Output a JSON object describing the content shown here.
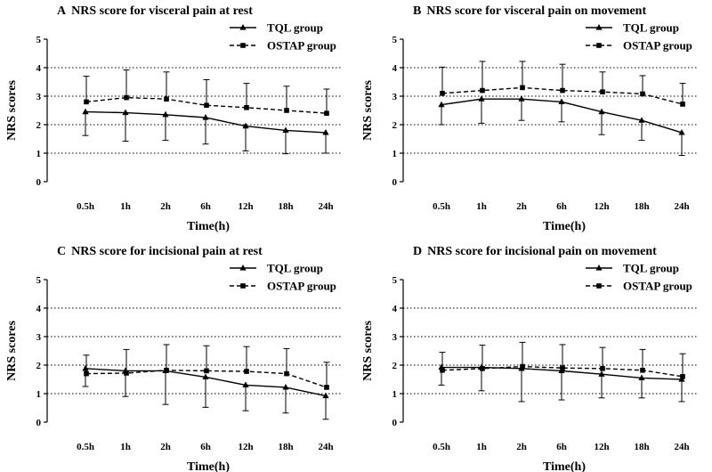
{
  "chart_data": [
    {
      "type": "line",
      "panel": "A",
      "title": "NRS score for visceral pain at rest",
      "xlabel": "Time(h)",
      "ylabel": "NRS scores",
      "categories": [
        "0.5h",
        "1h",
        "2h",
        "6h",
        "12h",
        "18h",
        "24h"
      ],
      "ylim": [
        0,
        5
      ],
      "yticks": [
        0,
        1,
        2,
        3,
        4,
        5
      ],
      "grid": "horizontal dotted at 1, 2, 3, 4",
      "legend_position": "top-right",
      "series": [
        {
          "name": "TQL group",
          "marker": "triangle",
          "style": "solid",
          "values": [
            2.45,
            2.42,
            2.35,
            2.25,
            1.95,
            1.8,
            1.72
          ],
          "upper": [
            3.7,
            3.9,
            3.85,
            3.6,
            3.5,
            3.35,
            3.25
          ],
          "lower": [
            1.62,
            1.42,
            1.45,
            1.32,
            1.08,
            0.98,
            1.0
          ]
        },
        {
          "name": "OSTAP group",
          "marker": "square",
          "style": "dashed",
          "values": [
            2.8,
            2.95,
            2.9,
            2.68,
            2.6,
            2.5,
            2.4
          ],
          "upper": [
            3.7,
            3.92,
            3.85,
            3.58,
            3.45,
            3.35,
            3.25
          ],
          "lower": [
            1.9,
            1.98,
            1.95,
            1.78,
            1.75,
            1.65,
            1.55
          ]
        }
      ]
    },
    {
      "type": "line",
      "panel": "B",
      "title": "NRS score for visceral pain on movement",
      "xlabel": "Time(h)",
      "ylabel": "NRS scores",
      "categories": [
        "0.5h",
        "1h",
        "2h",
        "6h",
        "12h",
        "18h",
        "24h"
      ],
      "ylim": [
        0,
        5
      ],
      "yticks": [
        0,
        1,
        2,
        3,
        4,
        5
      ],
      "grid": "horizontal dotted at 1, 2, 3, 4",
      "legend_position": "top-right",
      "series": [
        {
          "name": "TQL group",
          "marker": "triangle",
          "style": "solid",
          "values": [
            2.7,
            2.9,
            2.9,
            2.8,
            2.45,
            2.15,
            1.72
          ],
          "upper": [
            3.4,
            3.75,
            3.65,
            3.5,
            3.25,
            2.9,
            2.55
          ],
          "lower": [
            2.0,
            2.05,
            2.15,
            2.1,
            1.65,
            1.45,
            0.92
          ]
        },
        {
          "name": "OSTAP group",
          "marker": "square",
          "style": "dashed",
          "values": [
            3.1,
            3.2,
            3.3,
            3.2,
            3.15,
            3.08,
            2.72
          ],
          "upper": [
            4.02,
            4.22,
            4.22,
            4.12,
            3.85,
            3.72,
            3.45
          ],
          "lower": [
            2.2,
            2.2,
            2.4,
            2.3,
            2.45,
            2.45,
            2.0
          ]
        }
      ]
    },
    {
      "type": "line",
      "panel": "C",
      "title": "NRS score for incisional pain at rest",
      "xlabel": "Time(h)",
      "ylabel": "NRS scores",
      "categories": [
        "0.5h",
        "1h",
        "2h",
        "6h",
        "12h",
        "18h",
        "24h"
      ],
      "ylim": [
        0,
        5
      ],
      "yticks": [
        0,
        1,
        2,
        3,
        4,
        5
      ],
      "grid": "horizontal dotted at 1, 2, 3, 4",
      "legend_position": "top-right",
      "series": [
        {
          "name": "TQL group",
          "marker": "triangle",
          "style": "solid",
          "values": [
            1.88,
            1.8,
            1.8,
            1.58,
            1.3,
            1.22,
            0.92
          ],
          "upper": [
            2.5,
            2.62,
            2.7,
            2.6,
            2.2,
            2.1,
            1.75
          ],
          "lower": [
            1.25,
            0.9,
            0.62,
            0.52,
            0.4,
            0.32,
            0.1
          ]
        },
        {
          "name": "OSTAP group",
          "marker": "square",
          "style": "dashed",
          "values": [
            1.7,
            1.72,
            1.82,
            1.8,
            1.78,
            1.7,
            1.22
          ],
          "upper": [
            2.35,
            2.55,
            2.72,
            2.68,
            2.65,
            2.58,
            2.1
          ],
          "lower": [
            1.05,
            0.9,
            0.92,
            0.92,
            0.9,
            0.82,
            0.35
          ]
        }
      ]
    },
    {
      "type": "line",
      "panel": "D",
      "title": "NRS score for incisional pain on movement",
      "xlabel": "Time(h)",
      "ylabel": "NRS scores",
      "categories": [
        "0.5h",
        "1h",
        "2h",
        "6h",
        "12h",
        "18h",
        "24h"
      ],
      "ylim": [
        0,
        5
      ],
      "yticks": [
        0,
        1,
        2,
        3,
        4,
        5
      ],
      "grid": "horizontal dotted at 1, 2, 3, 4",
      "legend_position": "top-right",
      "series": [
        {
          "name": "TQL group",
          "marker": "triangle",
          "style": "solid",
          "values": [
            1.92,
            1.92,
            1.88,
            1.8,
            1.68,
            1.55,
            1.5
          ],
          "upper": [
            2.55,
            2.8,
            2.78,
            2.7,
            2.6,
            2.5,
            2.38
          ],
          "lower": [
            1.3,
            1.1,
            0.72,
            0.78,
            0.85,
            0.85,
            0.72
          ]
        },
        {
          "name": "OSTAP group",
          "marker": "square",
          "style": "dashed",
          "values": [
            1.82,
            1.88,
            1.95,
            1.9,
            1.88,
            1.82,
            1.6
          ],
          "upper": [
            2.45,
            2.7,
            2.8,
            2.72,
            2.62,
            2.55,
            2.4
          ],
          "lower": [
            1.3,
            1.1,
            1.05,
            1.05,
            1.1,
            1.05,
            0.8
          ]
        }
      ]
    }
  ]
}
